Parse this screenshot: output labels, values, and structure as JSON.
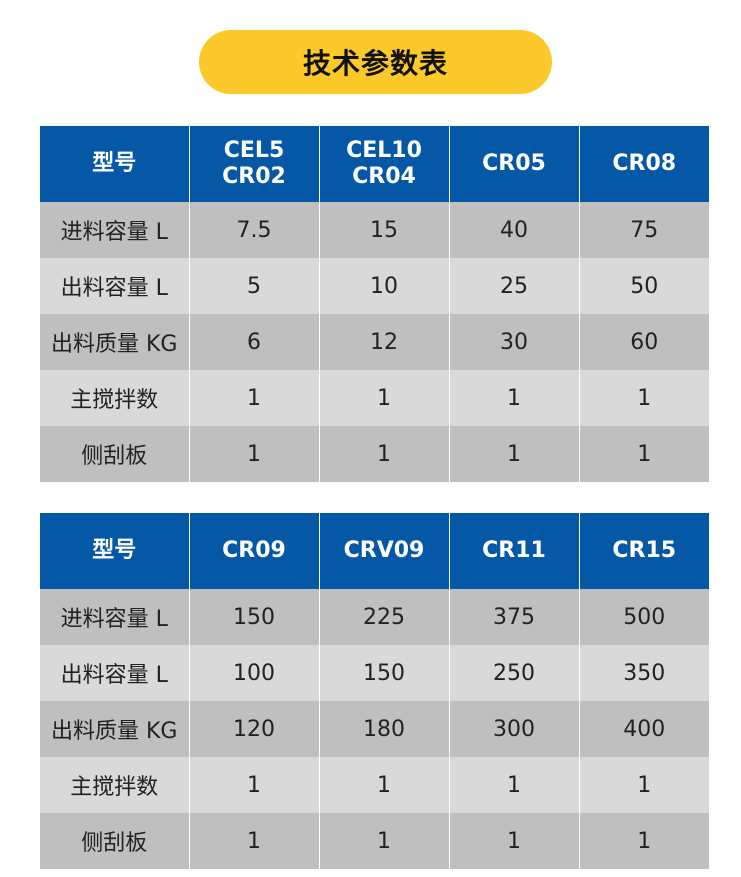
{
  "title": "技术参数表",
  "colors": {
    "header": "#0558a6",
    "accent": "#fcc92a",
    "row_dark": "#bfbfbf",
    "row_light": "#d9d9d9"
  },
  "tables": [
    {
      "headers": [
        "型号",
        "CEL5\nCR02",
        "CEL10\nCR04",
        "CR05",
        "CR08"
      ],
      "rows": [
        [
          "进料容量 L",
          "7.5",
          "15",
          "40",
          "75"
        ],
        [
          "出料容量 L",
          "5",
          "10",
          "25",
          "50"
        ],
        [
          "出料质量 KG",
          "6",
          "12",
          "30",
          "60"
        ],
        [
          "主搅拌数",
          "1",
          "1",
          "1",
          "1"
        ],
        [
          "侧刮板",
          "1",
          "1",
          "1",
          "1"
        ]
      ]
    },
    {
      "headers": [
        "型号",
        "CR09",
        "CRV09",
        "CR11",
        "CR15"
      ],
      "rows": [
        [
          "进料容量 L",
          "150",
          "225",
          "375",
          "500"
        ],
        [
          "出料容量 L",
          "100",
          "150",
          "250",
          "350"
        ],
        [
          "出料质量 KG",
          "120",
          "180",
          "300",
          "400"
        ],
        [
          "主搅拌数",
          "1",
          "1",
          "1",
          "1"
        ],
        [
          "侧刮板",
          "1",
          "1",
          "1",
          "1"
        ]
      ]
    }
  ]
}
